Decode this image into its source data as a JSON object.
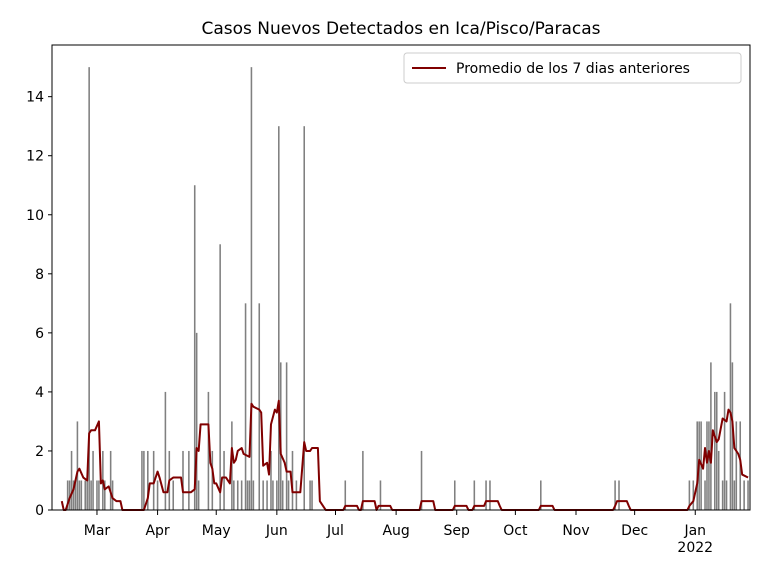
{
  "chart_data": {
    "type": "bar",
    "title": "Casos Nuevos Detectados en Ica/Pisco/Paracas",
    "legend": "upper right",
    "xlim": [
      "2021-02-06",
      "2022-01-29"
    ],
    "ylim": [
      0,
      15.75
    ],
    "yticks": [
      0,
      2,
      4,
      6,
      8,
      10,
      12,
      14
    ],
    "xticks": [
      {
        "value": "2021-03-01",
        "label": "Mar"
      },
      {
        "value": "2021-04-01",
        "label": "Apr"
      },
      {
        "value": "2021-05-01",
        "label": "May"
      },
      {
        "value": "2021-06-01",
        "label": "Jun"
      },
      {
        "value": "2021-07-01",
        "label": "Jul"
      },
      {
        "value": "2021-08-01",
        "label": "Aug"
      },
      {
        "value": "2021-09-01",
        "label": "Sep"
      },
      {
        "value": "2021-10-01",
        "label": "Oct"
      },
      {
        "value": "2021-11-01",
        "label": "Nov"
      },
      {
        "value": "2021-12-01",
        "label": "Dec"
      },
      {
        "value": "2022-01-01",
        "label": "Jan\n2022"
      }
    ],
    "bars": {
      "color": "#808080",
      "x": [
        "2021-02-14",
        "2021-02-15",
        "2021-02-16",
        "2021-02-17",
        "2021-02-18",
        "2021-02-19",
        "2021-02-20",
        "2021-02-21",
        "2021-02-23",
        "2021-02-24",
        "2021-02-25",
        "2021-02-26",
        "2021-02-27",
        "2021-03-01",
        "2021-03-02",
        "2021-03-04",
        "2021-03-05",
        "2021-03-08",
        "2021-03-09",
        "2021-03-24",
        "2021-03-25",
        "2021-03-27",
        "2021-03-30",
        "2021-04-01",
        "2021-04-05",
        "2021-04-07",
        "2021-04-09",
        "2021-04-14",
        "2021-04-17",
        "2021-04-20",
        "2021-04-21",
        "2021-04-22",
        "2021-04-27",
        "2021-04-29",
        "2021-05-03",
        "2021-05-05",
        "2021-05-09",
        "2021-05-10",
        "2021-05-12",
        "2021-05-14",
        "2021-05-16",
        "2021-05-17",
        "2021-05-18",
        "2021-05-19",
        "2021-05-20",
        "2021-05-23",
        "2021-05-25",
        "2021-05-27",
        "2021-05-29",
        "2021-05-30",
        "2021-06-01",
        "2021-06-02",
        "2021-06-03",
        "2021-06-04",
        "2021-06-06",
        "2021-06-07",
        "2021-06-09",
        "2021-06-11",
        "2021-06-15",
        "2021-06-18",
        "2021-06-19",
        "2021-07-06",
        "2021-07-15",
        "2021-07-24",
        "2021-08-14",
        "2021-08-31",
        "2021-09-10",
        "2021-09-16",
        "2021-09-18",
        "2021-10-14",
        "2021-11-21",
        "2021-11-23",
        "2021-12-29",
        "2021-12-31",
        "2022-01-02",
        "2022-01-03",
        "2022-01-04",
        "2022-01-06",
        "2022-01-07",
        "2022-01-08",
        "2022-01-09",
        "2022-01-11",
        "2022-01-12",
        "2022-01-13",
        "2022-01-15",
        "2022-01-16",
        "2022-01-17",
        "2022-01-19",
        "2022-01-20",
        "2022-01-21",
        "2022-01-22",
        "2022-01-24",
        "2022-01-26",
        "2022-01-28"
      ],
      "values": [
        1,
        1,
        2,
        1,
        1,
        3,
        1,
        1,
        1,
        1,
        15,
        1,
        2,
        1,
        1,
        2,
        1,
        2,
        1,
        2,
        2,
        2,
        2,
        1,
        4,
        2,
        1,
        2,
        2,
        11,
        6,
        1,
        4,
        2,
        9,
        2,
        3,
        1,
        1,
        1,
        7,
        1,
        1,
        15,
        1,
        7,
        1,
        1,
        2,
        1,
        1,
        13,
        5,
        1,
        5,
        1,
        2,
        1,
        13,
        1,
        1,
        1,
        2,
        1,
        2,
        1,
        1,
        1,
        1,
        1,
        1,
        1,
        1,
        1,
        3,
        3,
        3,
        1,
        3,
        3,
        5,
        4,
        4,
        2,
        1,
        4,
        1,
        7,
        5,
        1,
        3,
        3,
        1,
        1
      ]
    },
    "series": [
      {
        "name": "Promedio de los 7 dias anteriores",
        "type": "line",
        "color": "#800000",
        "x": [
          "2021-02-11",
          "2021-02-12",
          "2021-02-13",
          "2021-02-15",
          "2021-02-17",
          "2021-02-19",
          "2021-02-20",
          "2021-02-22",
          "2021-02-24",
          "2021-02-25",
          "2021-02-26",
          "2021-02-28",
          "2021-03-02",
          "2021-03-03",
          "2021-03-04",
          "2021-03-05",
          "2021-03-07",
          "2021-03-09",
          "2021-03-11",
          "2021-03-13",
          "2021-03-14",
          "2021-03-25",
          "2021-03-27",
          "2021-03-28",
          "2021-03-30",
          "2021-04-01",
          "2021-04-02",
          "2021-04-04",
          "2021-04-06",
          "2021-04-07",
          "2021-04-09",
          "2021-04-13",
          "2021-04-14",
          "2021-04-18",
          "2021-04-20",
          "2021-04-21",
          "2021-04-22",
          "2021-04-23",
          "2021-04-27",
          "2021-04-28",
          "2021-04-29",
          "2021-04-30",
          "2021-05-01",
          "2021-05-03",
          "2021-05-04",
          "2021-05-06",
          "2021-05-08",
          "2021-05-09",
          "2021-05-10",
          "2021-05-11",
          "2021-05-12",
          "2021-05-14",
          "2021-05-15",
          "2021-05-18",
          "2021-05-19",
          "2021-05-20",
          "2021-05-23",
          "2021-05-24",
          "2021-05-25",
          "2021-05-27",
          "2021-05-28",
          "2021-05-29",
          "2021-05-31",
          "2021-06-01",
          "2021-06-02",
          "2021-06-03",
          "2021-06-05",
          "2021-06-06",
          "2021-06-08",
          "2021-06-09",
          "2021-06-13",
          "2021-06-15",
          "2021-06-16",
          "2021-06-18",
          "2021-06-19",
          "2021-06-22",
          "2021-06-23",
          "2021-06-25",
          "2021-06-26",
          "2021-07-05",
          "2021-07-06",
          "2021-07-12",
          "2021-07-13",
          "2021-07-14",
          "2021-07-15",
          "2021-07-21",
          "2021-07-22",
          "2021-07-23",
          "2021-07-29",
          "2021-07-30",
          "2021-08-13",
          "2021-08-14",
          "2021-08-20",
          "2021-08-21",
          "2021-08-30",
          "2021-08-31",
          "2021-09-06",
          "2021-09-07",
          "2021-09-09",
          "2021-09-10",
          "2021-09-15",
          "2021-09-16",
          "2021-09-22",
          "2021-09-23",
          "2021-09-24",
          "2021-10-13",
          "2021-10-14",
          "2021-10-20",
          "2021-10-21",
          "2021-11-20",
          "2021-11-21",
          "2021-11-22",
          "2021-11-27",
          "2021-11-28",
          "2021-11-29",
          "2021-12-28",
          "2021-12-29",
          "2021-12-31",
          "2022-01-02",
          "2022-01-03",
          "2022-01-05",
          "2022-01-06",
          "2022-01-07",
          "2022-01-08",
          "2022-01-09",
          "2022-01-10",
          "2022-01-12",
          "2022-01-13",
          "2022-01-15",
          "2022-01-17",
          "2022-01-18",
          "2022-01-19",
          "2022-01-20",
          "2022-01-21",
          "2022-01-23",
          "2022-01-24",
          "2022-01-25",
          "2022-01-28"
        ],
        "values": [
          0.3,
          0,
          0,
          0.4,
          0.7,
          1.3,
          1.4,
          1.1,
          1.0,
          2.6,
          2.7,
          2.7,
          3.0,
          0.9,
          1.0,
          0.7,
          0.8,
          0.4,
          0.3,
          0.3,
          0,
          0,
          0.4,
          0.9,
          0.9,
          1.3,
          1.1,
          0.6,
          0.6,
          1.0,
          1.1,
          1.1,
          0.6,
          0.6,
          0.7,
          2.1,
          2.0,
          2.9,
          2.9,
          1.6,
          1.4,
          0.9,
          0.9,
          0.6,
          1.1,
          1.1,
          0.9,
          2.1,
          1.6,
          1.7,
          2.0,
          2.1,
          1.9,
          1.8,
          3.6,
          3.5,
          3.4,
          3.3,
          1.5,
          1.6,
          1.2,
          2.9,
          3.4,
          3.3,
          3.7,
          1.9,
          1.6,
          1.3,
          1.3,
          0.6,
          0.6,
          2.3,
          2.0,
          2.0,
          2.1,
          2.1,
          0.3,
          0.1,
          0,
          0,
          0.14,
          0.14,
          0,
          0,
          0.3,
          0.3,
          0,
          0.14,
          0.14,
          0,
          0,
          0.3,
          0.3,
          0,
          0,
          0.14,
          0.14,
          0,
          0,
          0.14,
          0.14,
          0.3,
          0.3,
          0.14,
          0,
          0,
          0.14,
          0.14,
          0,
          0,
          0.14,
          0.3,
          0.3,
          0.14,
          0,
          0,
          0.14,
          0.3,
          0.9,
          1.7,
          1.4,
          2.1,
          1.6,
          2.0,
          1.6,
          2.7,
          2.3,
          2.4,
          3.1,
          3.0,
          3.4,
          3.3,
          3.0,
          2.1,
          1.9,
          1.7,
          1.2,
          1.1
        ]
      }
    ]
  }
}
